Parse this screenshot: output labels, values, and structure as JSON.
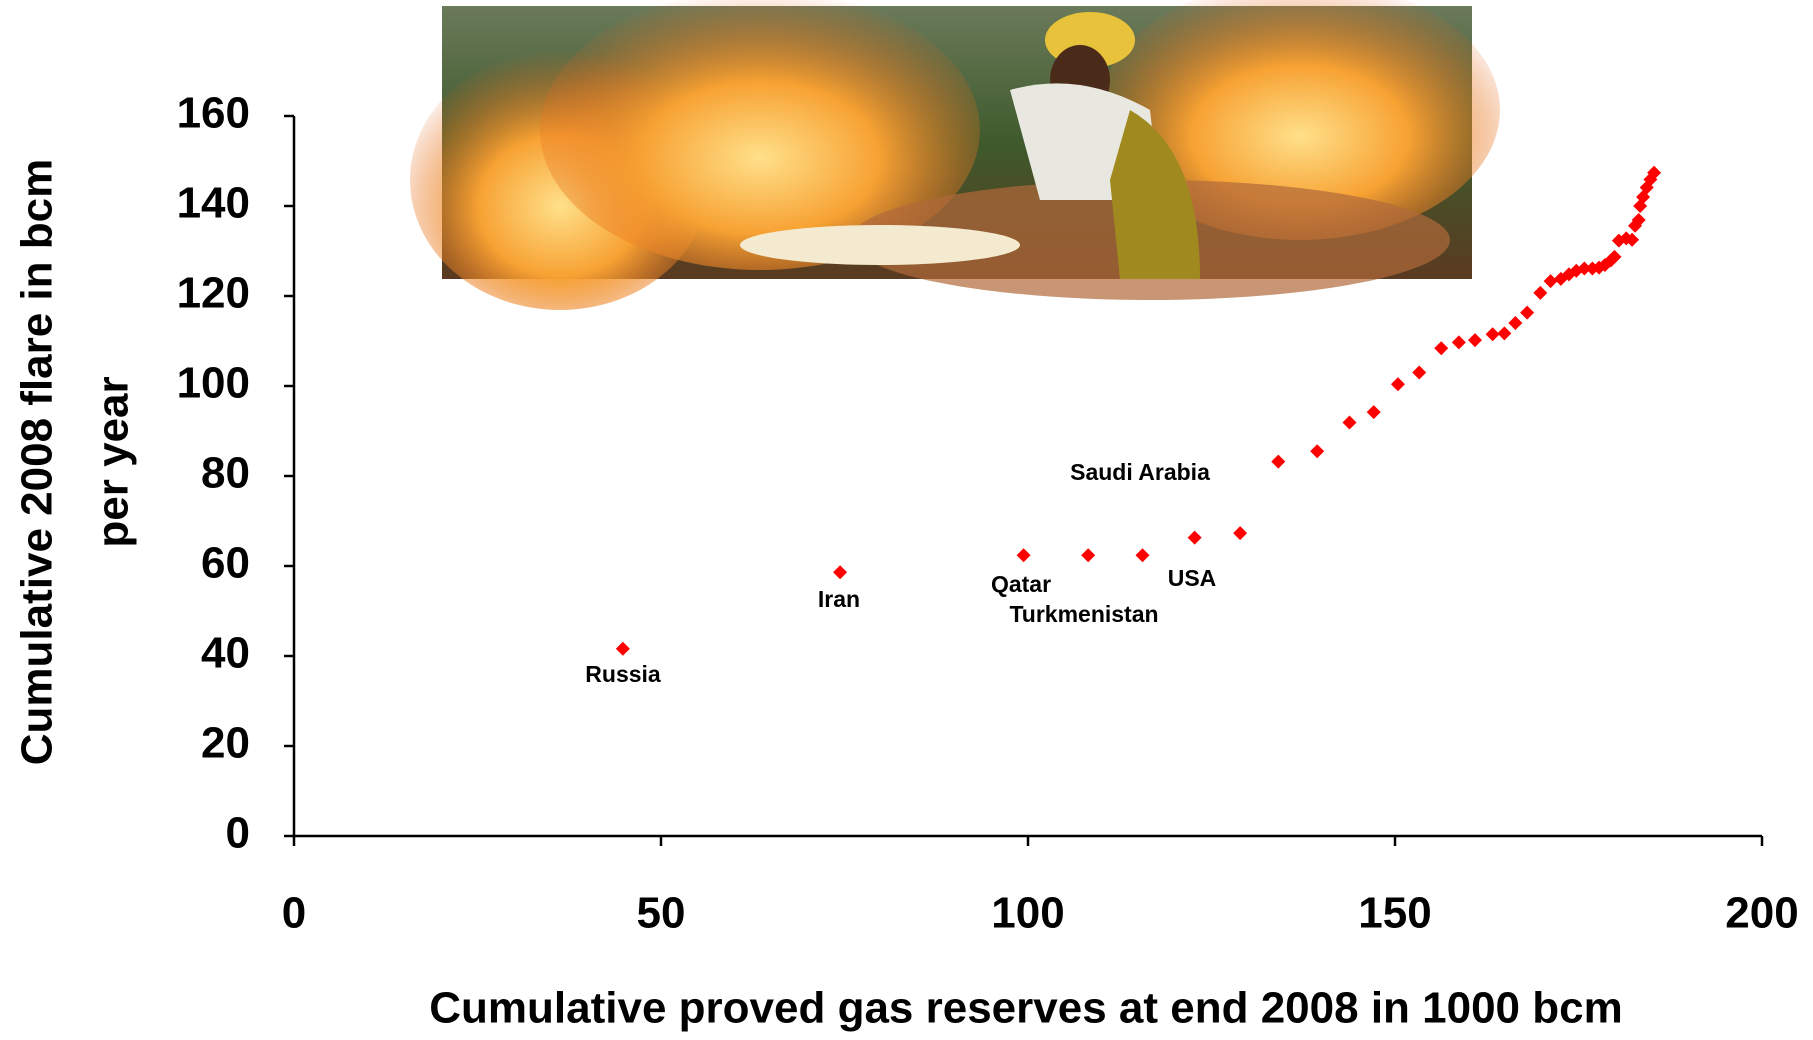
{
  "chart_data": {
    "type": "scatter",
    "x_label": "Cumulative proved gas reserves at end 2008 in 1000 bcm",
    "y_label": [
      "Cumulative 2008 flare in bcm",
      "per year"
    ],
    "xlim": [
      0,
      200
    ],
    "xticks": [
      0,
      50,
      100,
      150,
      200
    ],
    "ylim": [
      0,
      160
    ],
    "yticks": [
      0,
      20,
      40,
      60,
      80,
      100,
      120,
      140,
      160
    ],
    "grid": false,
    "series": [
      {
        "color": "#ff0000",
        "x": [
          44.8,
          74.4,
          99.4,
          108.2,
          115.6,
          122.7,
          128.9,
          134.1,
          139.4,
          143.8,
          147.1,
          150.4,
          153.3,
          156.3,
          158.7,
          160.9,
          163.3,
          164.9,
          166.4,
          168.0,
          169.8,
          171.2,
          172.6,
          173.7,
          174.7,
          175.8,
          176.9,
          177.8,
          178.6,
          179.4,
          179.9,
          180.5,
          181.5,
          182.3,
          182.7,
          183.2,
          183.4,
          183.8,
          184.3,
          184.8,
          185.3
        ],
        "values": [
          41.6,
          58.6,
          62.4,
          62.4,
          62.4,
          66.3,
          67.3,
          83.2,
          85.5,
          91.9,
          94.2,
          100.4,
          103.0,
          108.4,
          109.7,
          110.2,
          111.5,
          111.7,
          114.0,
          116.3,
          120.7,
          123.3,
          123.8,
          124.8,
          125.6,
          126.1,
          126.1,
          126.3,
          126.9,
          127.9,
          128.7,
          132.3,
          132.8,
          132.5,
          135.6,
          136.9,
          140.0,
          142.0,
          144.1,
          145.9,
          147.4
        ]
      }
    ],
    "annotations": [
      "Russia",
      "Iran",
      "Qatar",
      "Turkmenistan",
      "USA",
      "Saudi Arabia"
    ]
  }
}
